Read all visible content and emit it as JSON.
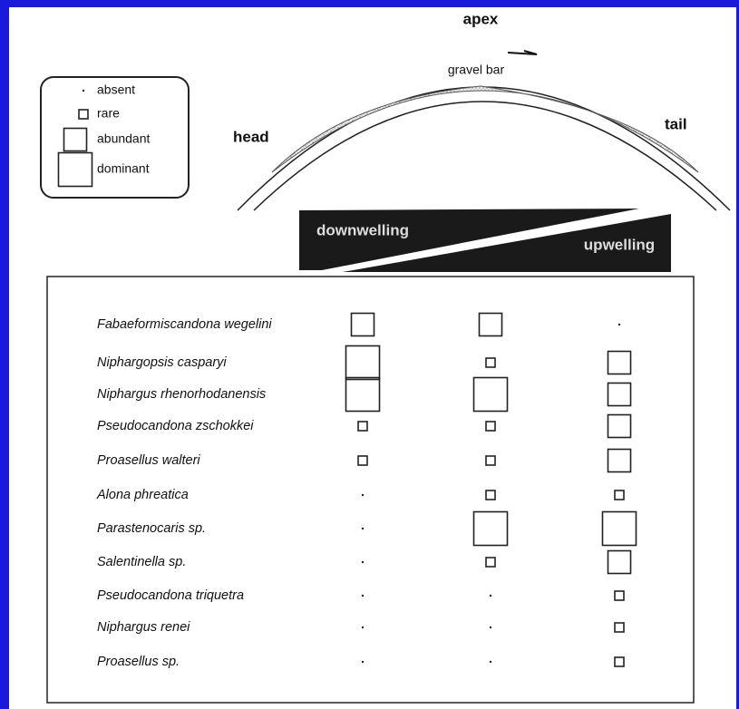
{
  "legend": [
    "absent",
    "rare",
    "abundant",
    "dominant"
  ],
  "diagram": {
    "apex": "apex",
    "bar": "gravel bar",
    "head": "head",
    "tail": "tail",
    "down": "downwelling",
    "up": "upwelling"
  },
  "species": [
    "Fabaeformiscandona wegelini",
    "Niphargopsis casparyi",
    "Niphargus rhenorhodanensis",
    "Pseudocandona zschokkei",
    "Proasellus walteri",
    "Alona phreatica",
    "Parastenocaris sp.",
    "Salentinella sp.",
    "Pseudocandona triquetra",
    "Niphargus renei",
    "Proasellus sp."
  ],
  "abundance": [
    [
      2,
      2,
      0
    ],
    [
      3,
      1,
      2
    ],
    [
      3,
      3,
      2
    ],
    [
      1,
      1,
      2
    ],
    [
      1,
      1,
      2
    ],
    [
      0,
      1,
      1
    ],
    [
      0,
      3,
      3
    ],
    [
      0,
      1,
      2
    ],
    [
      0,
      0,
      1
    ],
    [
      0,
      0,
      1
    ],
    [
      0,
      0,
      1
    ]
  ]
}
